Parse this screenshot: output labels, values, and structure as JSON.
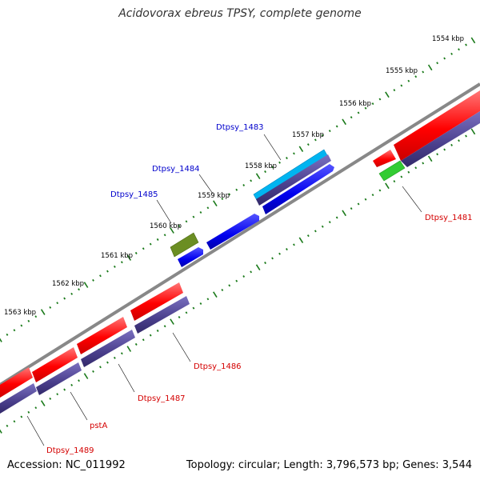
{
  "title": "Acidovorax ebreus TPSY, complete genome",
  "footer": {
    "accession": "Accession: NC_011992",
    "summary": "Topology: circular; Length: 3,796,573 bp; Genes: 3,544"
  },
  "colors": {
    "backbone": "#888888",
    "tick": "#1a7a1a",
    "cds_red": "#ff0000",
    "cds_purple": "#4a3f8c",
    "cds_blue": "#0000ee",
    "cds_cyan": "#00b4f0",
    "cds_green": "#33cc33",
    "cds_olive": "#6b8e23",
    "label_red": "#d40000",
    "label_blue": "#0000cc"
  },
  "scale_labels": [
    "1554 kbp",
    "1555 kbp",
    "1556 kbp",
    "1557 kbp",
    "1558 kbp",
    "1559 kbp",
    "1560 kbp",
    "1561 kbp",
    "1562 kbp",
    "1563 kbp"
  ],
  "gene_labels": [
    "Dtpsy_1483",
    "Dtpsy_1484",
    "Dtpsy_1485",
    "Dtpsy_1481",
    "Dtpsy_1486",
    "Dtpsy_1487",
    "pstA",
    "Dtpsy_1489"
  ]
}
